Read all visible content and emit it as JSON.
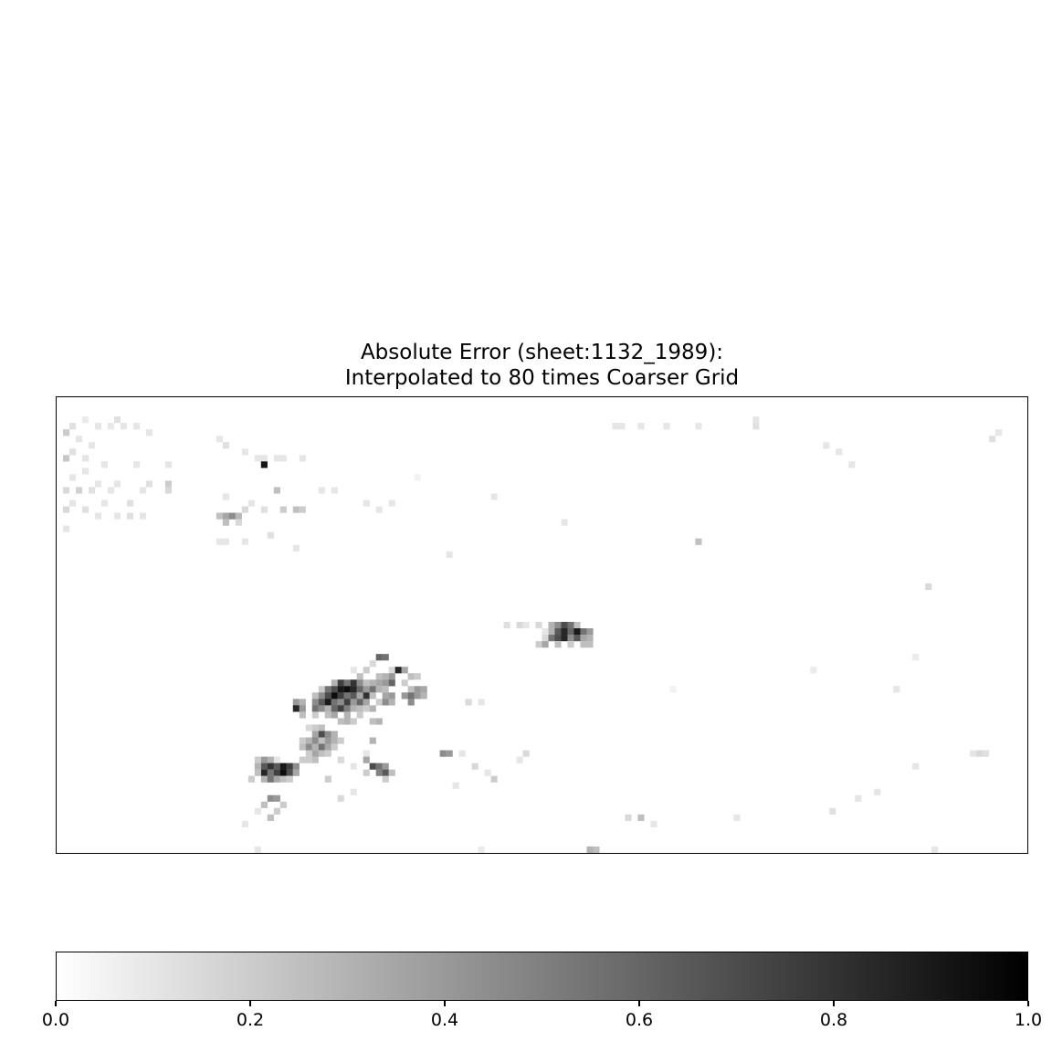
{
  "chart_data": {
    "type": "heatmap",
    "title_lines": [
      "Absolute Error (sheet:1132_1989):",
      "Interpolated to 80 times Coarser Grid"
    ],
    "xlabel": "",
    "ylabel": "",
    "axes_ticks_visible": false,
    "colormap": "Greys",
    "value_range": [
      0.0,
      1.0
    ],
    "colorbar": {
      "orientation": "horizontal",
      "placement": "bottom",
      "ticks": [
        0.0,
        0.2,
        0.4,
        0.6,
        0.8,
        1.0
      ],
      "tick_labels": [
        "0.0",
        "0.2",
        "0.4",
        "0.6",
        "0.8",
        "1.0"
      ]
    },
    "grid": {
      "cols": 152,
      "rows": 71
    },
    "cells": [
      [
        2,
        4,
        0.12
      ],
      [
        4,
        3,
        0.08
      ],
      [
        6,
        4,
        0.1
      ],
      [
        8,
        4,
        0.09
      ],
      [
        9,
        3,
        0.12
      ],
      [
        10,
        4,
        0.1
      ],
      [
        12,
        4,
        0.1
      ],
      [
        14,
        5,
        0.1
      ],
      [
        1,
        5,
        0.2
      ],
      [
        3,
        6,
        0.1
      ],
      [
        5,
        7,
        0.1
      ],
      [
        2,
        8,
        0.12
      ],
      [
        1,
        9,
        0.22
      ],
      [
        4,
        9,
        0.1
      ],
      [
        7,
        10,
        0.1
      ],
      [
        12,
        10,
        0.1
      ],
      [
        17,
        10,
        0.1
      ],
      [
        4,
        11,
        0.1
      ],
      [
        2,
        12,
        0.1
      ],
      [
        6,
        13,
        0.1
      ],
      [
        9,
        13,
        0.1
      ],
      [
        14,
        13,
        0.12
      ],
      [
        17,
        13,
        0.2
      ],
      [
        1,
        14,
        0.15
      ],
      [
        3,
        14,
        0.18
      ],
      [
        5,
        14,
        0.12
      ],
      [
        8,
        14,
        0.1
      ],
      [
        13,
        14,
        0.1
      ],
      [
        17,
        14,
        0.15
      ],
      [
        2,
        16,
        0.1
      ],
      [
        7,
        16,
        0.1
      ],
      [
        11,
        16,
        0.12
      ],
      [
        1,
        17,
        0.15
      ],
      [
        4,
        17,
        0.12
      ],
      [
        6,
        18,
        0.1
      ],
      [
        9,
        18,
        0.1
      ],
      [
        11,
        18,
        0.12
      ],
      [
        13,
        18,
        0.1
      ],
      [
        25,
        6,
        0.1
      ],
      [
        26,
        7,
        0.12
      ],
      [
        29,
        8,
        0.1
      ],
      [
        31,
        9,
        0.1
      ],
      [
        32,
        9,
        0.1
      ],
      [
        34,
        9,
        0.1
      ],
      [
        35,
        9,
        0.1
      ],
      [
        38,
        9,
        0.1
      ],
      [
        32,
        10,
        0.92
      ],
      [
        34,
        14,
        0.25
      ],
      [
        41,
        14,
        0.1
      ],
      [
        43,
        14,
        0.1
      ],
      [
        26,
        15,
        0.1
      ],
      [
        30,
        16,
        0.1
      ],
      [
        25,
        18,
        0.25
      ],
      [
        26,
        18,
        0.35
      ],
      [
        27,
        18,
        0.45
      ],
      [
        28,
        18,
        0.28
      ],
      [
        26,
        19,
        0.25
      ],
      [
        28,
        19,
        0.15
      ],
      [
        29,
        17,
        0.15
      ],
      [
        32,
        17,
        0.12
      ],
      [
        35,
        17,
        0.2
      ],
      [
        37,
        17,
        0.25
      ],
      [
        38,
        17,
        0.2
      ],
      [
        48,
        16,
        0.1
      ],
      [
        50,
        17,
        0.1
      ],
      [
        52,
        16,
        0.1
      ],
      [
        25,
        22,
        0.1
      ],
      [
        26,
        22,
        0.1
      ],
      [
        29,
        22,
        0.1
      ],
      [
        33,
        21,
        0.12
      ],
      [
        37,
        23,
        0.1
      ],
      [
        1,
        20,
        0.1
      ],
      [
        56,
        12,
        0.05
      ],
      [
        68,
        15,
        0.1
      ],
      [
        61,
        24,
        0.1
      ],
      [
        79,
        19,
        0.1
      ],
      [
        87,
        4,
        0.1
      ],
      [
        88,
        4,
        0.1
      ],
      [
        91,
        4,
        0.1
      ],
      [
        95,
        4,
        0.1
      ],
      [
        100,
        4,
        0.1
      ],
      [
        109,
        3,
        0.1
      ],
      [
        109,
        4,
        0.12
      ],
      [
        120,
        7,
        0.1
      ],
      [
        122,
        8,
        0.1
      ],
      [
        124,
        10,
        0.1
      ],
      [
        100,
        22,
        0.25
      ],
      [
        136,
        29,
        0.15
      ],
      [
        131,
        45,
        0.1
      ],
      [
        146,
        6,
        0.12
      ],
      [
        147,
        5,
        0.1
      ],
      [
        70,
        35,
        0.12
      ],
      [
        72,
        35,
        0.15
      ],
      [
        73,
        35,
        0.1
      ],
      [
        75,
        35,
        0.15
      ],
      [
        76,
        36,
        0.1
      ],
      [
        77,
        35,
        0.3
      ],
      [
        78,
        35,
        0.45
      ],
      [
        79,
        35,
        0.7
      ],
      [
        80,
        35,
        0.55
      ],
      [
        81,
        35,
        0.25
      ],
      [
        77,
        36,
        0.3
      ],
      [
        78,
        36,
        0.65
      ],
      [
        79,
        36,
        0.85
      ],
      [
        80,
        36,
        0.6
      ],
      [
        81,
        36,
        0.9
      ],
      [
        82,
        36,
        0.55
      ],
      [
        83,
        36,
        0.4
      ],
      [
        76,
        37,
        0.15
      ],
      [
        77,
        37,
        0.55
      ],
      [
        78,
        37,
        0.7
      ],
      [
        79,
        37,
        0.85
      ],
      [
        80,
        37,
        0.45
      ],
      [
        81,
        37,
        0.65
      ],
      [
        82,
        37,
        0.35
      ],
      [
        83,
        37,
        0.3
      ],
      [
        75,
        38,
        0.2
      ],
      [
        76,
        38,
        0.35
      ],
      [
        78,
        38,
        0.25
      ],
      [
        80,
        38,
        0.2
      ],
      [
        82,
        38,
        0.25
      ],
      [
        83,
        38,
        0.25
      ],
      [
        50,
        40,
        0.6
      ],
      [
        51,
        40,
        0.55
      ],
      [
        49,
        41,
        0.15
      ],
      [
        52,
        42,
        0.15
      ],
      [
        53,
        42,
        0.85
      ],
      [
        54,
        42,
        0.35
      ],
      [
        55,
        43,
        0.25
      ],
      [
        56,
        43,
        0.2
      ],
      [
        48,
        42,
        0.2
      ],
      [
        47,
        43,
        0.25
      ],
      [
        46,
        42,
        0.1
      ],
      [
        50,
        43,
        0.25
      ],
      [
        51,
        43,
        0.3
      ],
      [
        52,
        43,
        0.4
      ],
      [
        43,
        44,
        0.3
      ],
      [
        44,
        44,
        0.75
      ],
      [
        45,
        44,
        0.55
      ],
      [
        46,
        44,
        0.8
      ],
      [
        47,
        44,
        0.45
      ],
      [
        48,
        44,
        0.25
      ],
      [
        49,
        44,
        0.3
      ],
      [
        50,
        44,
        0.35
      ],
      [
        51,
        44,
        0.4
      ],
      [
        52,
        44,
        0.6
      ],
      [
        54,
        44,
        0.2
      ],
      [
        41,
        45,
        0.2
      ],
      [
        42,
        45,
        0.55
      ],
      [
        43,
        45,
        0.7
      ],
      [
        44,
        45,
        0.9
      ],
      [
        45,
        45,
        0.95
      ],
      [
        46,
        45,
        0.85
      ],
      [
        47,
        45,
        0.6
      ],
      [
        48,
        45,
        0.4
      ],
      [
        49,
        45,
        0.55
      ],
      [
        50,
        45,
        0.3
      ],
      [
        51,
        45,
        0.25
      ],
      [
        55,
        45,
        0.25
      ],
      [
        56,
        45,
        0.4
      ],
      [
        57,
        45,
        0.35
      ],
      [
        40,
        46,
        0.25
      ],
      [
        41,
        46,
        0.45
      ],
      [
        42,
        46,
        0.7
      ],
      [
        43,
        46,
        0.95
      ],
      [
        44,
        46,
        0.75
      ],
      [
        45,
        46,
        0.55
      ],
      [
        46,
        46,
        0.65
      ],
      [
        47,
        46,
        0.35
      ],
      [
        48,
        46,
        0.8
      ],
      [
        49,
        46,
        0.25
      ],
      [
        51,
        46,
        0.35
      ],
      [
        52,
        46,
        0.4
      ],
      [
        54,
        46,
        0.4
      ],
      [
        55,
        46,
        0.55
      ],
      [
        56,
        46,
        0.4
      ],
      [
        57,
        46,
        0.3
      ],
      [
        37,
        47,
        0.4
      ],
      [
        38,
        47,
        0.3
      ],
      [
        40,
        47,
        0.45
      ],
      [
        41,
        47,
        0.65
      ],
      [
        42,
        47,
        0.9
      ],
      [
        43,
        47,
        0.55
      ],
      [
        44,
        47,
        0.45
      ],
      [
        45,
        47,
        0.75
      ],
      [
        46,
        47,
        0.4
      ],
      [
        47,
        47,
        0.6
      ],
      [
        48,
        47,
        0.35
      ],
      [
        50,
        47,
        0.2
      ],
      [
        51,
        47,
        0.45
      ],
      [
        52,
        47,
        0.3
      ],
      [
        55,
        47,
        0.45
      ],
      [
        64,
        47,
        0.15
      ],
      [
        66,
        47,
        0.1
      ],
      [
        37,
        48,
        0.85
      ],
      [
        38,
        48,
        0.4
      ],
      [
        40,
        48,
        0.55
      ],
      [
        41,
        48,
        0.45
      ],
      [
        42,
        48,
        0.3
      ],
      [
        43,
        48,
        0.6
      ],
      [
        44,
        48,
        0.75
      ],
      [
        45,
        48,
        0.5
      ],
      [
        46,
        48,
        0.3
      ],
      [
        47,
        48,
        0.25
      ],
      [
        48,
        48,
        0.2
      ],
      [
        49,
        48,
        0.3
      ],
      [
        38,
        49,
        0.25
      ],
      [
        40,
        49,
        0.2
      ],
      [
        42,
        49,
        0.25
      ],
      [
        43,
        49,
        0.35
      ],
      [
        45,
        49,
        0.3
      ],
      [
        47,
        49,
        0.2
      ],
      [
        44,
        50,
        0.25
      ],
      [
        45,
        50,
        0.3
      ],
      [
        46,
        50,
        0.2
      ],
      [
        49,
        50,
        0.25
      ],
      [
        50,
        50,
        0.3
      ],
      [
        39,
        51,
        0.15
      ],
      [
        40,
        51,
        0.2
      ],
      [
        41,
        51,
        0.25
      ],
      [
        40,
        52,
        0.35
      ],
      [
        41,
        52,
        0.7
      ],
      [
        42,
        52,
        0.45
      ],
      [
        43,
        52,
        0.3
      ],
      [
        38,
        53,
        0.2
      ],
      [
        39,
        53,
        0.3
      ],
      [
        40,
        53,
        0.45
      ],
      [
        41,
        53,
        0.25
      ],
      [
        42,
        53,
        0.4
      ],
      [
        43,
        53,
        0.3
      ],
      [
        44,
        53,
        0.2
      ],
      [
        38,
        54,
        0.25
      ],
      [
        39,
        54,
        0.45
      ],
      [
        40,
        54,
        0.3
      ],
      [
        41,
        54,
        0.55
      ],
      [
        42,
        54,
        0.35
      ],
      [
        43,
        54,
        0.2
      ],
      [
        49,
        53,
        0.3
      ],
      [
        39,
        55,
        0.2
      ],
      [
        40,
        55,
        0.35
      ],
      [
        41,
        55,
        0.25
      ],
      [
        42,
        55,
        0.2
      ],
      [
        48,
        55,
        0.1
      ],
      [
        60,
        55,
        0.45
      ],
      [
        61,
        55,
        0.4
      ],
      [
        34,
        56,
        0.1
      ],
      [
        33,
        56,
        0.3
      ],
      [
        32,
        56,
        0.4
      ],
      [
        31,
        56,
        0.2
      ],
      [
        32,
        57,
        0.65
      ],
      [
        33,
        57,
        0.8
      ],
      [
        34,
        57,
        0.65
      ],
      [
        35,
        57,
        0.9
      ],
      [
        36,
        57,
        0.75
      ],
      [
        37,
        57,
        0.45
      ],
      [
        38,
        56,
        0.2
      ],
      [
        31,
        57,
        0.3
      ],
      [
        32,
        58,
        0.85
      ],
      [
        33,
        58,
        0.55
      ],
      [
        34,
        58,
        0.75
      ],
      [
        35,
        58,
        0.95
      ],
      [
        36,
        58,
        0.7
      ],
      [
        37,
        58,
        0.35
      ],
      [
        31,
        58,
        0.25
      ],
      [
        32,
        59,
        0.3
      ],
      [
        33,
        59,
        0.55
      ],
      [
        34,
        59,
        0.35
      ],
      [
        35,
        59,
        0.25
      ],
      [
        36,
        59,
        0.2
      ],
      [
        30,
        59,
        0.2
      ],
      [
        39,
        56,
        0.2
      ],
      [
        40,
        56,
        0.25
      ],
      [
        48,
        56,
        0.35
      ],
      [
        49,
        57,
        0.7
      ],
      [
        50,
        57,
        0.55
      ],
      [
        51,
        57,
        0.4
      ],
      [
        48,
        58,
        0.2
      ],
      [
        50,
        58,
        0.5
      ],
      [
        51,
        58,
        0.65
      ],
      [
        52,
        58,
        0.25
      ],
      [
        51,
        59,
        0.2
      ],
      [
        42,
        59,
        0.2
      ],
      [
        44,
        56,
        0.15
      ],
      [
        46,
        57,
        0.1
      ],
      [
        67,
        58,
        0.1
      ],
      [
        68,
        59,
        0.2
      ],
      [
        65,
        57,
        0.15
      ],
      [
        63,
        55,
        0.1
      ],
      [
        72,
        56,
        0.1
      ],
      [
        73,
        55,
        0.15
      ],
      [
        62,
        60,
        0.1
      ],
      [
        33,
        62,
        0.45
      ],
      [
        34,
        62,
        0.4
      ],
      [
        32,
        63,
        0.25
      ],
      [
        35,
        63,
        0.2
      ],
      [
        44,
        62,
        0.15
      ],
      [
        46,
        61,
        0.1
      ],
      [
        33,
        65,
        0.25
      ],
      [
        34,
        64,
        0.2
      ],
      [
        31,
        64,
        0.1
      ],
      [
        29,
        66,
        0.1
      ],
      [
        91,
        65,
        0.25
      ],
      [
        93,
        66,
        0.1
      ],
      [
        89,
        65,
        0.15
      ],
      [
        106,
        65,
        0.1
      ],
      [
        121,
        64,
        0.12
      ],
      [
        125,
        62,
        0.1
      ],
      [
        128,
        61,
        0.1
      ],
      [
        134,
        57,
        0.1
      ],
      [
        143,
        55,
        0.1
      ],
      [
        144,
        55,
        0.15
      ],
      [
        145,
        55,
        0.12
      ],
      [
        83,
        70,
        0.3
      ],
      [
        84,
        70,
        0.25
      ],
      [
        31,
        70,
        0.1
      ],
      [
        66,
        70,
        0.08
      ],
      [
        137,
        70,
        0.1
      ],
      [
        134,
        40,
        0.08
      ],
      [
        118,
        42,
        0.08
      ],
      [
        96,
        45,
        0.05
      ]
    ]
  }
}
